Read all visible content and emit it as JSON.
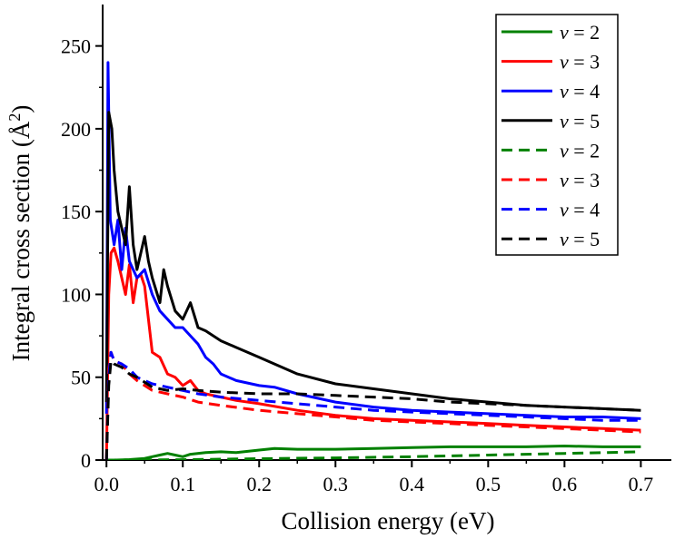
{
  "chart_data": {
    "type": "line",
    "xlabel": "Collision energy (eV)",
    "ylabel": "Integral cross section (Å²)",
    "ylabel_parts": {
      "main": "Integral cross section (Å",
      "sup": "2",
      "close": ")"
    },
    "xlim": [
      -0.005,
      0.74
    ],
    "ylim": [
      0,
      275
    ],
    "xticks": [
      0.0,
      0.1,
      0.2,
      0.3,
      0.4,
      0.5,
      0.6,
      0.7
    ],
    "xtick_labels": [
      "0.0",
      "0.1",
      "0.2",
      "0.3",
      "0.4",
      "0.5",
      "0.6",
      "0.7"
    ],
    "yticks": [
      0,
      50,
      100,
      150,
      200,
      250
    ],
    "ytick_labels": [
      "0",
      "50",
      "100",
      "150",
      "200",
      "250"
    ],
    "legend_position": "top-right",
    "series": [
      {
        "name": "v = 2",
        "legend_var": "v",
        "legend_rest": " = 2",
        "color": "#008000",
        "dash": "solid",
        "x": [
          0.0,
          0.01,
          0.03,
          0.05,
          0.06,
          0.07,
          0.08,
          0.09,
          0.1,
          0.11,
          0.13,
          0.15,
          0.17,
          0.2,
          0.22,
          0.25,
          0.3,
          0.35,
          0.4,
          0.45,
          0.5,
          0.55,
          0.6,
          0.65,
          0.7
        ],
        "y": [
          0,
          0,
          0.3,
          1,
          2,
          3,
          4,
          3,
          2,
          3.5,
          4.5,
          5,
          4.5,
          6,
          7,
          6.5,
          6.5,
          7,
          7.5,
          8,
          8,
          8,
          8.5,
          8,
          8
        ]
      },
      {
        "name": "v = 3",
        "legend_var": "v",
        "legend_rest": " = 3",
        "color": "#ff0000",
        "dash": "solid",
        "x": [
          0.0,
          0.003,
          0.006,
          0.01,
          0.015,
          0.02,
          0.025,
          0.03,
          0.035,
          0.04,
          0.045,
          0.05,
          0.06,
          0.07,
          0.08,
          0.09,
          0.1,
          0.11,
          0.12,
          0.13,
          0.15,
          0.17,
          0.2,
          0.25,
          0.3,
          0.35,
          0.4,
          0.45,
          0.5,
          0.55,
          0.6,
          0.65,
          0.7
        ],
        "y": [
          0,
          100,
          125,
          128,
          120,
          110,
          100,
          118,
          95,
          110,
          112,
          105,
          65,
          62,
          52,
          50,
          45,
          48,
          42,
          40,
          38,
          36,
          34,
          30,
          27,
          25,
          24,
          23,
          22,
          21,
          20,
          19,
          18
        ]
      },
      {
        "name": "v = 4",
        "legend_var": "v",
        "legend_rest": " = 4",
        "color": "#0000ff",
        "dash": "solid",
        "x": [
          0.0,
          0.002,
          0.005,
          0.01,
          0.015,
          0.02,
          0.025,
          0.03,
          0.04,
          0.05,
          0.06,
          0.07,
          0.08,
          0.09,
          0.1,
          0.11,
          0.12,
          0.13,
          0.14,
          0.15,
          0.17,
          0.2,
          0.22,
          0.25,
          0.3,
          0.35,
          0.4,
          0.45,
          0.5,
          0.55,
          0.6,
          0.65,
          0.7
        ],
        "y": [
          28,
          240,
          145,
          130,
          145,
          115,
          140,
          120,
          110,
          115,
          100,
          90,
          85,
          80,
          80,
          75,
          70,
          62,
          58,
          52,
          48,
          45,
          44,
          40,
          35,
          32,
          30,
          29,
          28,
          27,
          26,
          26,
          25
        ]
      },
      {
        "name": "v = 5",
        "legend_var": "v",
        "legend_rest": " = 5",
        "color": "#000000",
        "dash": "solid",
        "x": [
          0.0,
          0.003,
          0.007,
          0.01,
          0.015,
          0.02,
          0.025,
          0.03,
          0.035,
          0.04,
          0.05,
          0.055,
          0.06,
          0.07,
          0.075,
          0.08,
          0.09,
          0.1,
          0.11,
          0.12,
          0.13,
          0.15,
          0.17,
          0.2,
          0.25,
          0.3,
          0.35,
          0.4,
          0.45,
          0.5,
          0.55,
          0.6,
          0.65,
          0.7
        ],
        "y": [
          35,
          210,
          200,
          175,
          150,
          140,
          130,
          165,
          130,
          115,
          135,
          120,
          110,
          95,
          115,
          105,
          90,
          85,
          95,
          80,
          78,
          72,
          68,
          62,
          52,
          46,
          43,
          40,
          37,
          35,
          33,
          32,
          31,
          30
        ]
      },
      {
        "name": "v = 2",
        "legend_var": "v",
        "legend_rest": " = 2",
        "color": "#008000",
        "dash": "dashed",
        "x": [
          0.0,
          0.1,
          0.2,
          0.3,
          0.4,
          0.5,
          0.6,
          0.7
        ],
        "y": [
          0,
          0.2,
          0.8,
          1.3,
          2,
          3,
          4,
          5
        ]
      },
      {
        "name": "v = 3",
        "legend_var": "v",
        "legend_rest": " = 3",
        "color": "#ff0000",
        "dash": "dashed",
        "x": [
          0.0,
          0.003,
          0.006,
          0.01,
          0.02,
          0.03,
          0.04,
          0.05,
          0.06,
          0.08,
          0.1,
          0.12,
          0.15,
          0.2,
          0.25,
          0.3,
          0.35,
          0.4,
          0.45,
          0.5,
          0.55,
          0.6,
          0.65,
          0.7
        ],
        "y": [
          0,
          55,
          65,
          60,
          58,
          52,
          48,
          45,
          42,
          40,
          38,
          35,
          33,
          30,
          28,
          26,
          24,
          23,
          22,
          21,
          20,
          19,
          18,
          17
        ]
      },
      {
        "name": "v = 4",
        "legend_var": "v",
        "legend_rest": " = 4",
        "color": "#0000ff",
        "dash": "dashed",
        "x": [
          0.0,
          0.003,
          0.006,
          0.01,
          0.02,
          0.03,
          0.04,
          0.05,
          0.06,
          0.08,
          0.1,
          0.12,
          0.15,
          0.2,
          0.25,
          0.3,
          0.35,
          0.4,
          0.45,
          0.5,
          0.55,
          0.6,
          0.65,
          0.7
        ],
        "y": [
          0,
          50,
          65,
          60,
          58,
          55,
          50,
          48,
          46,
          44,
          42,
          40,
          38,
          36,
          34,
          32,
          30,
          29,
          28,
          27,
          26,
          25,
          24,
          24
        ]
      },
      {
        "name": "v = 5",
        "legend_var": "v",
        "legend_rest": " = 5",
        "color": "#000000",
        "dash": "dashed",
        "x": [
          0.0,
          0.003,
          0.006,
          0.01,
          0.02,
          0.03,
          0.04,
          0.05,
          0.06,
          0.08,
          0.1,
          0.12,
          0.15,
          0.2,
          0.25,
          0.3,
          0.35,
          0.4,
          0.45,
          0.5,
          0.55,
          0.6,
          0.65,
          0.7
        ],
        "y": [
          0,
          45,
          60,
          58,
          56,
          52,
          50,
          47,
          44,
          42,
          43,
          42,
          41,
          40,
          40,
          39,
          38,
          37,
          35,
          34,
          33,
          32,
          31,
          30
        ]
      }
    ]
  }
}
